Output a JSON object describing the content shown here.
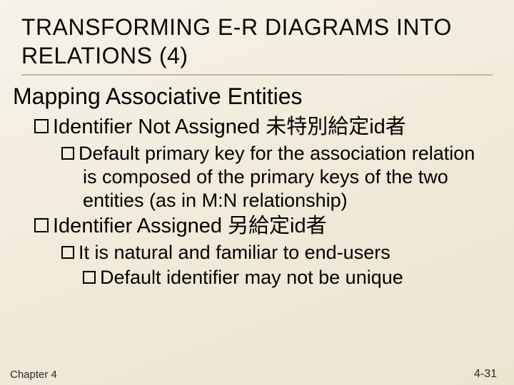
{
  "colors": {
    "background_gradient_start": "#f7f3ea",
    "background_gradient_end": "#ede4d0",
    "title_underline": "#c2b89f",
    "text": "#000000",
    "footer_text": "#2a2a2a"
  },
  "typography": {
    "title_fontsize": 32,
    "h2_fontsize": 32,
    "lvl1_fontsize": 29,
    "lvl2_fontsize": 27,
    "footer_fontsize": 15,
    "font_family": "Arial"
  },
  "title": "TRANSFORMING E-R DIAGRAMS INTO RELATIONS (4)",
  "h2": "Mapping Associative Entities",
  "bullets": [
    {
      "text": "Identifier Not Assigned 未特別給定id者",
      "children": [
        {
          "text": "Default primary key for the association relation is composed of the primary keys of the two entities (as in M:N relationship)"
        }
      ]
    },
    {
      "text": "Identifier Assigned 另給定id者",
      "children": [
        {
          "text": "It is natural and familiar to end-users"
        }
      ]
    }
  ],
  "cutoff_line": "Default identifier may not be unique",
  "footer": {
    "left": "Chapter 4",
    "right": "4-31"
  }
}
